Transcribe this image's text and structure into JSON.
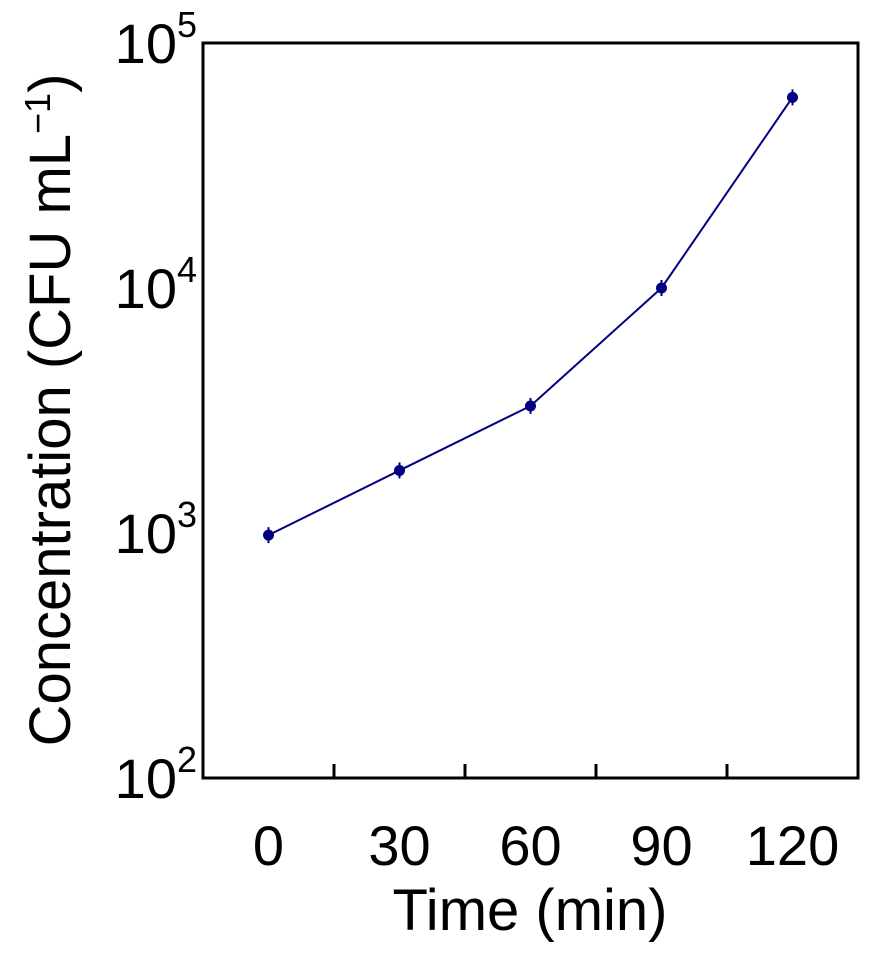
{
  "chart_data": {
    "type": "line",
    "x": [
      0,
      30,
      60,
      90,
      120
    ],
    "series": [
      {
        "values": [
          980,
          1800,
          3300,
          10000,
          60000
        ],
        "color": "#000080"
      }
    ],
    "xlabel": "Time (min)",
    "ylabel": {
      "main": "Concentration (CFU mL",
      "sup": "−1",
      "close": ")"
    },
    "x_tick_labels": [
      "0",
      "30",
      "60",
      "90",
      "120"
    ],
    "y_ticks": [
      {
        "value": 100,
        "base": "10",
        "exp": "2"
      },
      {
        "value": 1000,
        "base": "10",
        "exp": "3"
      },
      {
        "value": 10000,
        "base": "10",
        "exp": "4"
      },
      {
        "value": 100000,
        "base": "10",
        "exp": "5"
      }
    ],
    "xlim": [
      -15,
      135
    ],
    "ylim": [
      100,
      100000
    ],
    "y_scale": "log",
    "grid": false,
    "legend": "none"
  }
}
